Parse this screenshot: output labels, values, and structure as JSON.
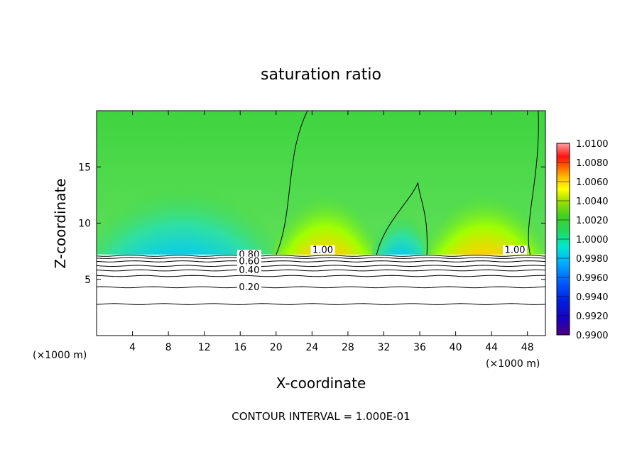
{
  "chart_data": {
    "type": "heatmap",
    "title": "saturation ratio",
    "xlabel": "X-coordinate",
    "ylabel": "Z-coordinate",
    "x_unit": "(×1000 m)",
    "z_unit": "(×1000 m)",
    "xlim": [
      0,
      50
    ],
    "ylim": [
      0,
      20
    ],
    "x_ticks": [
      4,
      8,
      12,
      16,
      20,
      24,
      28,
      32,
      36,
      40,
      44,
      48
    ],
    "y_ticks": [
      5,
      10,
      15
    ],
    "contour_interval_text": "CONTOUR INTERVAL = 1.000E-01",
    "colorbar": {
      "min": 0.99,
      "max": 1.01,
      "labels": [
        "1.0100",
        "1.0080",
        "1.0060",
        "1.0040",
        "1.0020",
        "1.0000",
        "0.9980",
        "0.9960",
        "0.9940",
        "0.9920",
        "0.9900"
      ]
    },
    "contour_labels": [
      {
        "text": "1.00",
        "x": 25.2,
        "z": 7.4
      },
      {
        "text": "1.00",
        "x": 46.6,
        "z": 7.4
      },
      {
        "text": "0.80",
        "x": 17.0,
        "z": 7.0
      },
      {
        "text": "0.60",
        "x": 17.0,
        "z": 6.4
      },
      {
        "text": "0.40",
        "x": 17.0,
        "z": 5.6
      },
      {
        "text": "0.20",
        "x": 17.0,
        "z": 4.1
      }
    ],
    "cloud_base_z": 7.2,
    "contour_levels_z": [
      2.8,
      4.3,
      5.3,
      5.8,
      6.2,
      6.6,
      6.9,
      7.1
    ],
    "saturated_regions": [
      {
        "x_start": 0.0,
        "x_end": 19.0,
        "tone": "subsaturated"
      },
      {
        "x_start": 20.0,
        "x_end": 31.0,
        "tone": "supersaturated"
      },
      {
        "x_start": 31.0,
        "x_end": 37.0,
        "tone": "subsaturated"
      },
      {
        "x_start": 37.0,
        "x_end": 49.5,
        "tone": "supersaturated"
      }
    ]
  }
}
